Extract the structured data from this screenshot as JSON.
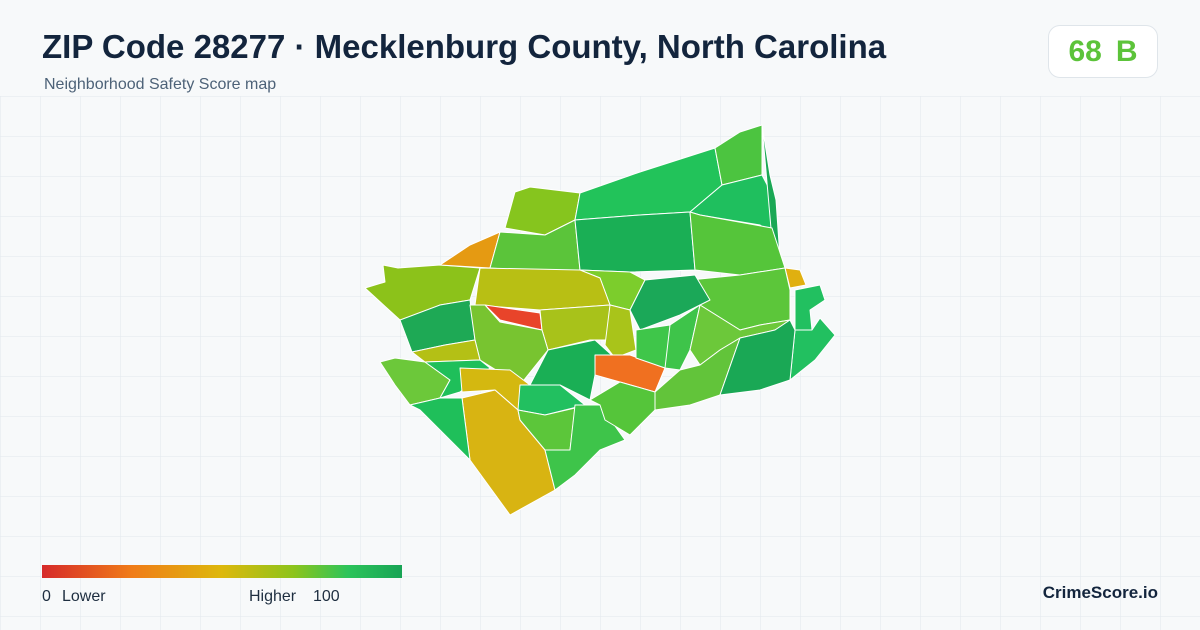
{
  "header": {
    "title": "ZIP Code 28277 · Mecklenburg County, North Carolina",
    "subtitle": "Neighborhood Safety Score map"
  },
  "score": {
    "value": 68,
    "grade": "B"
  },
  "legend": {
    "min": 0,
    "low_label": "Lower",
    "high_label": "Higher",
    "max": 100
  },
  "footer": {
    "brand": "CrimeScore.io"
  }
}
